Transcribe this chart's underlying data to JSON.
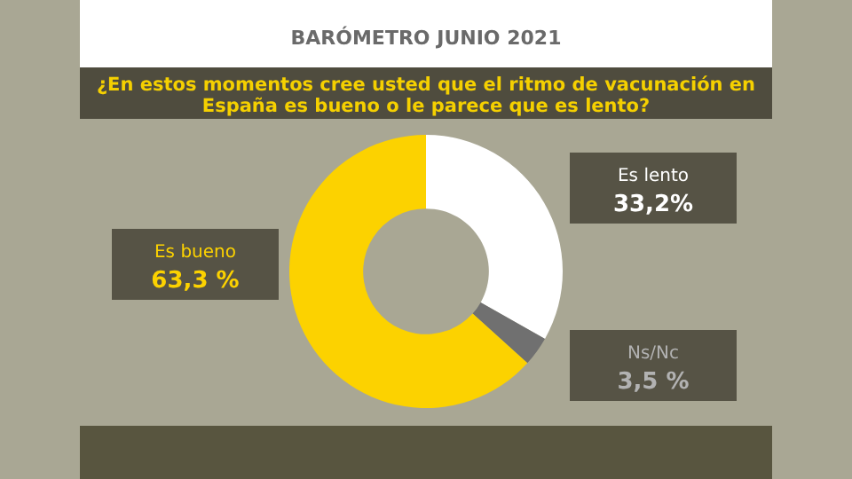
{
  "chart_data": {
    "type": "donut",
    "title": "BARÓMETRO JUNIO 2021",
    "subtitle": "¿En estos momentos cree usted que el ritmo de vacunación en España es bueno o le parece que es lento?",
    "categories": [
      "Es lento",
      "Ns/Nc",
      "Es bueno"
    ],
    "values": [
      33.2,
      3.5,
      63.3
    ],
    "colors": [
      "#ffffff",
      "#707070",
      "#fcd200"
    ],
    "value_labels": [
      "33,2%",
      "3,5 %",
      "63,3 %"
    ]
  }
}
